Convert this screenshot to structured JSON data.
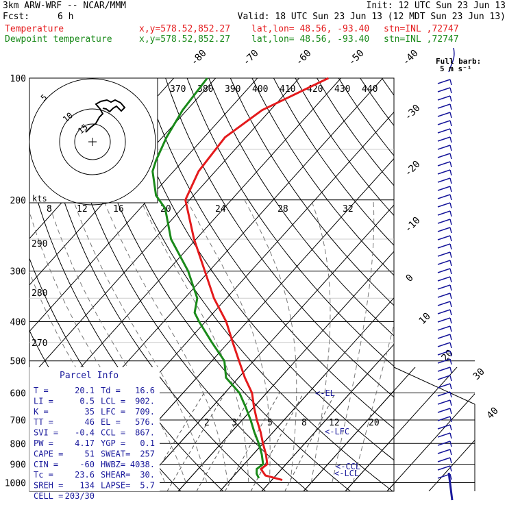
{
  "header": {
    "model": "3km ARW-WRF -- NCAR/MMM",
    "init": "Init: 12 UTC Sun 23 Jun 13",
    "fcst_label": "Fcst:",
    "fcst_value": "6 h",
    "valid": "Valid: 18 UTC Sun 23 Jun 13 (12 MDT Sun 23 Jun 13)",
    "temp_label": "Temperature",
    "dew_label": "Dewpoint temperature",
    "xy_temp": "x,y=578.52,852.27",
    "latlon_temp": "lat,lon= 48.56, -93.40",
    "stn_temp": "stn=INL ,72747",
    "xy_dew": "x,y=578.52,852.27",
    "latlon_dew": "lat,lon= 48.56, -93.40",
    "stn_dew": "stn=INL ,72747"
  },
  "colors": {
    "temperature": "#e41a1c",
    "dewpoint": "#1a8a1a",
    "wind": "#1a1a9c",
    "info": "#1a1a9c"
  },
  "wind_legend": {
    "line1": "Full barb:",
    "line2": "5 m s⁻¹"
  },
  "hodograph": {
    "ring_labels": [
      "5",
      "10",
      "15"
    ],
    "speed_label": "kts"
  },
  "parcel_info": {
    "title": "Parcel Info",
    "rows": [
      {
        "l": "T  =",
        "lv": "20.1",
        "r": "Td =",
        "rv": "16.6"
      },
      {
        "l": "LI =",
        "lv": "0.5",
        "r": "LCL =",
        "rv": "902."
      },
      {
        "l": "K  =",
        "lv": "35",
        "r": "LFC =",
        "rv": "709."
      },
      {
        "l": "TT =",
        "lv": "46",
        "r": "EL  =",
        "rv": "576."
      },
      {
        "l": "SVI =",
        "lv": "-0.4",
        "r": "CCL =",
        "rv": "867."
      },
      {
        "l": "PW =",
        "lv": "4.17",
        "r": "YGP =",
        "rv": "0.1"
      },
      {
        "l": "CAPE =",
        "lv": "51",
        "r": "SWEAT=",
        "rv": "257"
      },
      {
        "l": "CIN =",
        "lv": "-60",
        "r": "HWBZ=",
        "rv": "4038."
      },
      {
        "l": "Tc =",
        "lv": "23.6",
        "r": "SHEAR=",
        "rv": "30."
      },
      {
        "l": "SREH =",
        "lv": "134",
        "r": "LAPSE=",
        "rv": "5.7"
      },
      {
        "l": "CELL =",
        "lv": "203/30",
        "r": "",
        "rv": ""
      }
    ]
  },
  "level_markers": [
    "<-EL",
    "<-LFC",
    "<-CCL",
    "<-LCL"
  ],
  "chart_data": {
    "type": "line",
    "pressure_ticks": [
      100,
      200,
      300,
      400,
      500,
      600,
      700,
      800,
      900,
      1000
    ],
    "isotherm_labels": [
      "-80",
      "-70",
      "-60",
      "-50",
      "-40",
      "-30",
      "-20",
      "-10",
      "0",
      "10",
      "20",
      "30",
      "40"
    ],
    "theta_labels_top": [
      "370",
      "380",
      "390",
      "400",
      "410",
      "420",
      "430",
      "440"
    ],
    "theta_labels_left": [
      "290",
      "280",
      "270"
    ],
    "mixing_ratio_labels_upper": [
      "8",
      "12",
      "16",
      "20",
      "24",
      "28",
      "32"
    ],
    "mixing_ratio_labels_lower": [
      "2",
      "3",
      "5",
      "8",
      "12",
      "20"
    ],
    "series": [
      {
        "name": "Temperature",
        "p": [
          985,
          960,
          925,
          900,
          850,
          800,
          750,
          700,
          650,
          600,
          550,
          500,
          450,
          400,
          350,
          300,
          250,
          200,
          170,
          140,
          120,
          100
        ],
        "t": [
          22.5,
          17.5,
          15.0,
          15.5,
          13.0,
          10.0,
          7.0,
          3.5,
          0.0,
          -3.5,
          -8.5,
          -13.5,
          -19.0,
          -25.0,
          -33.0,
          -41.0,
          -50.5,
          -61.0,
          -64.0,
          -65.0,
          -62.0,
          -53.0
        ]
      },
      {
        "name": "Dewpoint temperature",
        "p": [
          975,
          950,
          925,
          900,
          850,
          800,
          750,
          700,
          650,
          600,
          550,
          500,
          450,
          400,
          380,
          350,
          300,
          250,
          210,
          195,
          180,
          170,
          160,
          140,
          120,
          100
        ],
        "t": [
          16.5,
          15.0,
          14.0,
          14.5,
          12.0,
          9.0,
          5.5,
          2.0,
          -2.0,
          -6.5,
          -13.0,
          -17.0,
          -24.0,
          -31.5,
          -34.5,
          -37.0,
          -45.0,
          -56.0,
          -64.0,
          -69.0,
          -72.5,
          -75.0,
          -76.5,
          -79.0,
          -81.0,
          -82.0
        ]
      }
    ]
  }
}
